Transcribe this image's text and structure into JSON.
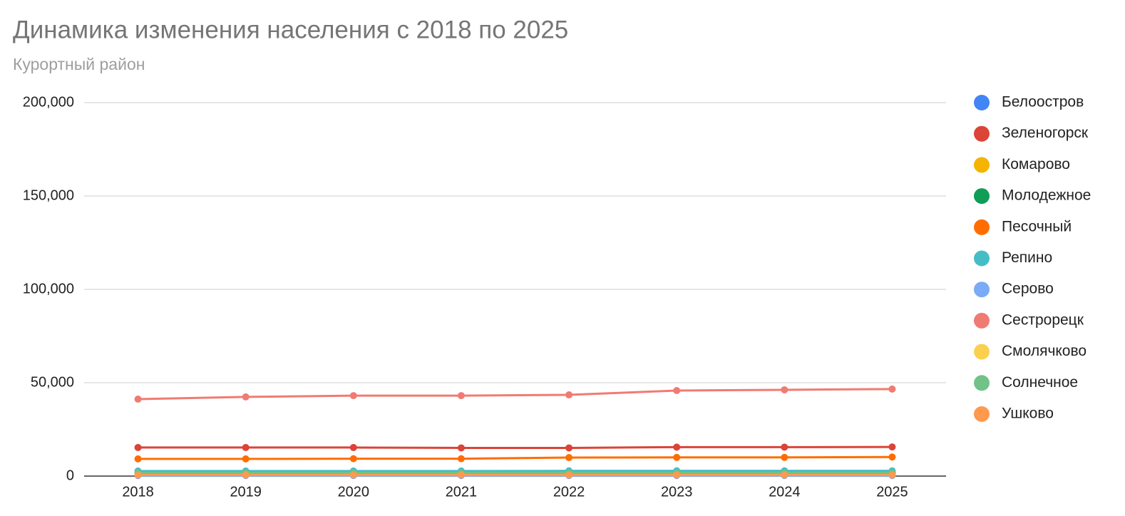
{
  "chart_data": {
    "type": "line",
    "title": "Динамика изменения населения с 2018 по 2025",
    "subtitle": "Курортный район",
    "categories": [
      "2018",
      "2019",
      "2020",
      "2021",
      "2022",
      "2023",
      "2024",
      "2025"
    ],
    "ylim": [
      0,
      200000
    ],
    "yticks": [
      0,
      {
        "value": 50000,
        "label": "50,000"
      },
      {
        "value": 100000,
        "label": "100,000"
      },
      {
        "value": 150000,
        "label": "150,000"
      },
      {
        "value": 200000,
        "label": "200,000"
      }
    ],
    "grid": true,
    "legend": "right",
    "series": [
      {
        "name": "Белоостров",
        "color": "#4285f4",
        "values": [
          2000,
          2000,
          2000,
          2000,
          2100,
          2100,
          2100,
          2100
        ]
      },
      {
        "name": "Зеленогорск",
        "color": "#db4437",
        "values": [
          15300,
          15300,
          15300,
          15100,
          15100,
          15500,
          15500,
          15600
        ]
      },
      {
        "name": "Комарово",
        "color": "#f4b400",
        "values": [
          1000,
          1000,
          1000,
          1000,
          1000,
          1000,
          1000,
          1000
        ]
      },
      {
        "name": "Молодежное",
        "color": "#0f9d58",
        "values": [
          1500,
          1500,
          1500,
          1500,
          1500,
          1500,
          1500,
          1500
        ]
      },
      {
        "name": "Песочный",
        "color": "#ff6d01",
        "values": [
          9200,
          9200,
          9300,
          9300,
          9900,
          10000,
          10000,
          10200
        ]
      },
      {
        "name": "Репино",
        "color": "#46bdc6",
        "values": [
          2700,
          2700,
          2700,
          2700,
          2800,
          2800,
          2800,
          2800
        ]
      },
      {
        "name": "Серово",
        "color": "#7baaf7",
        "values": [
          300,
          300,
          300,
          300,
          300,
          300,
          300,
          300
        ]
      },
      {
        "name": "Сестрорецк",
        "color": "#f07b72",
        "values": [
          41200,
          42400,
          43100,
          43100,
          43500,
          45800,
          46200,
          46600
        ]
      },
      {
        "name": "Смолячково",
        "color": "#fcd04f",
        "values": [
          800,
          800,
          800,
          800,
          800,
          800,
          800,
          800
        ]
      },
      {
        "name": "Солнечное",
        "color": "#71c287",
        "values": [
          1700,
          1700,
          1700,
          1700,
          1700,
          1700,
          1700,
          1700
        ]
      },
      {
        "name": "Ушково",
        "color": "#ff994d",
        "values": [
          600,
          600,
          600,
          600,
          600,
          600,
          600,
          600
        ]
      }
    ]
  }
}
